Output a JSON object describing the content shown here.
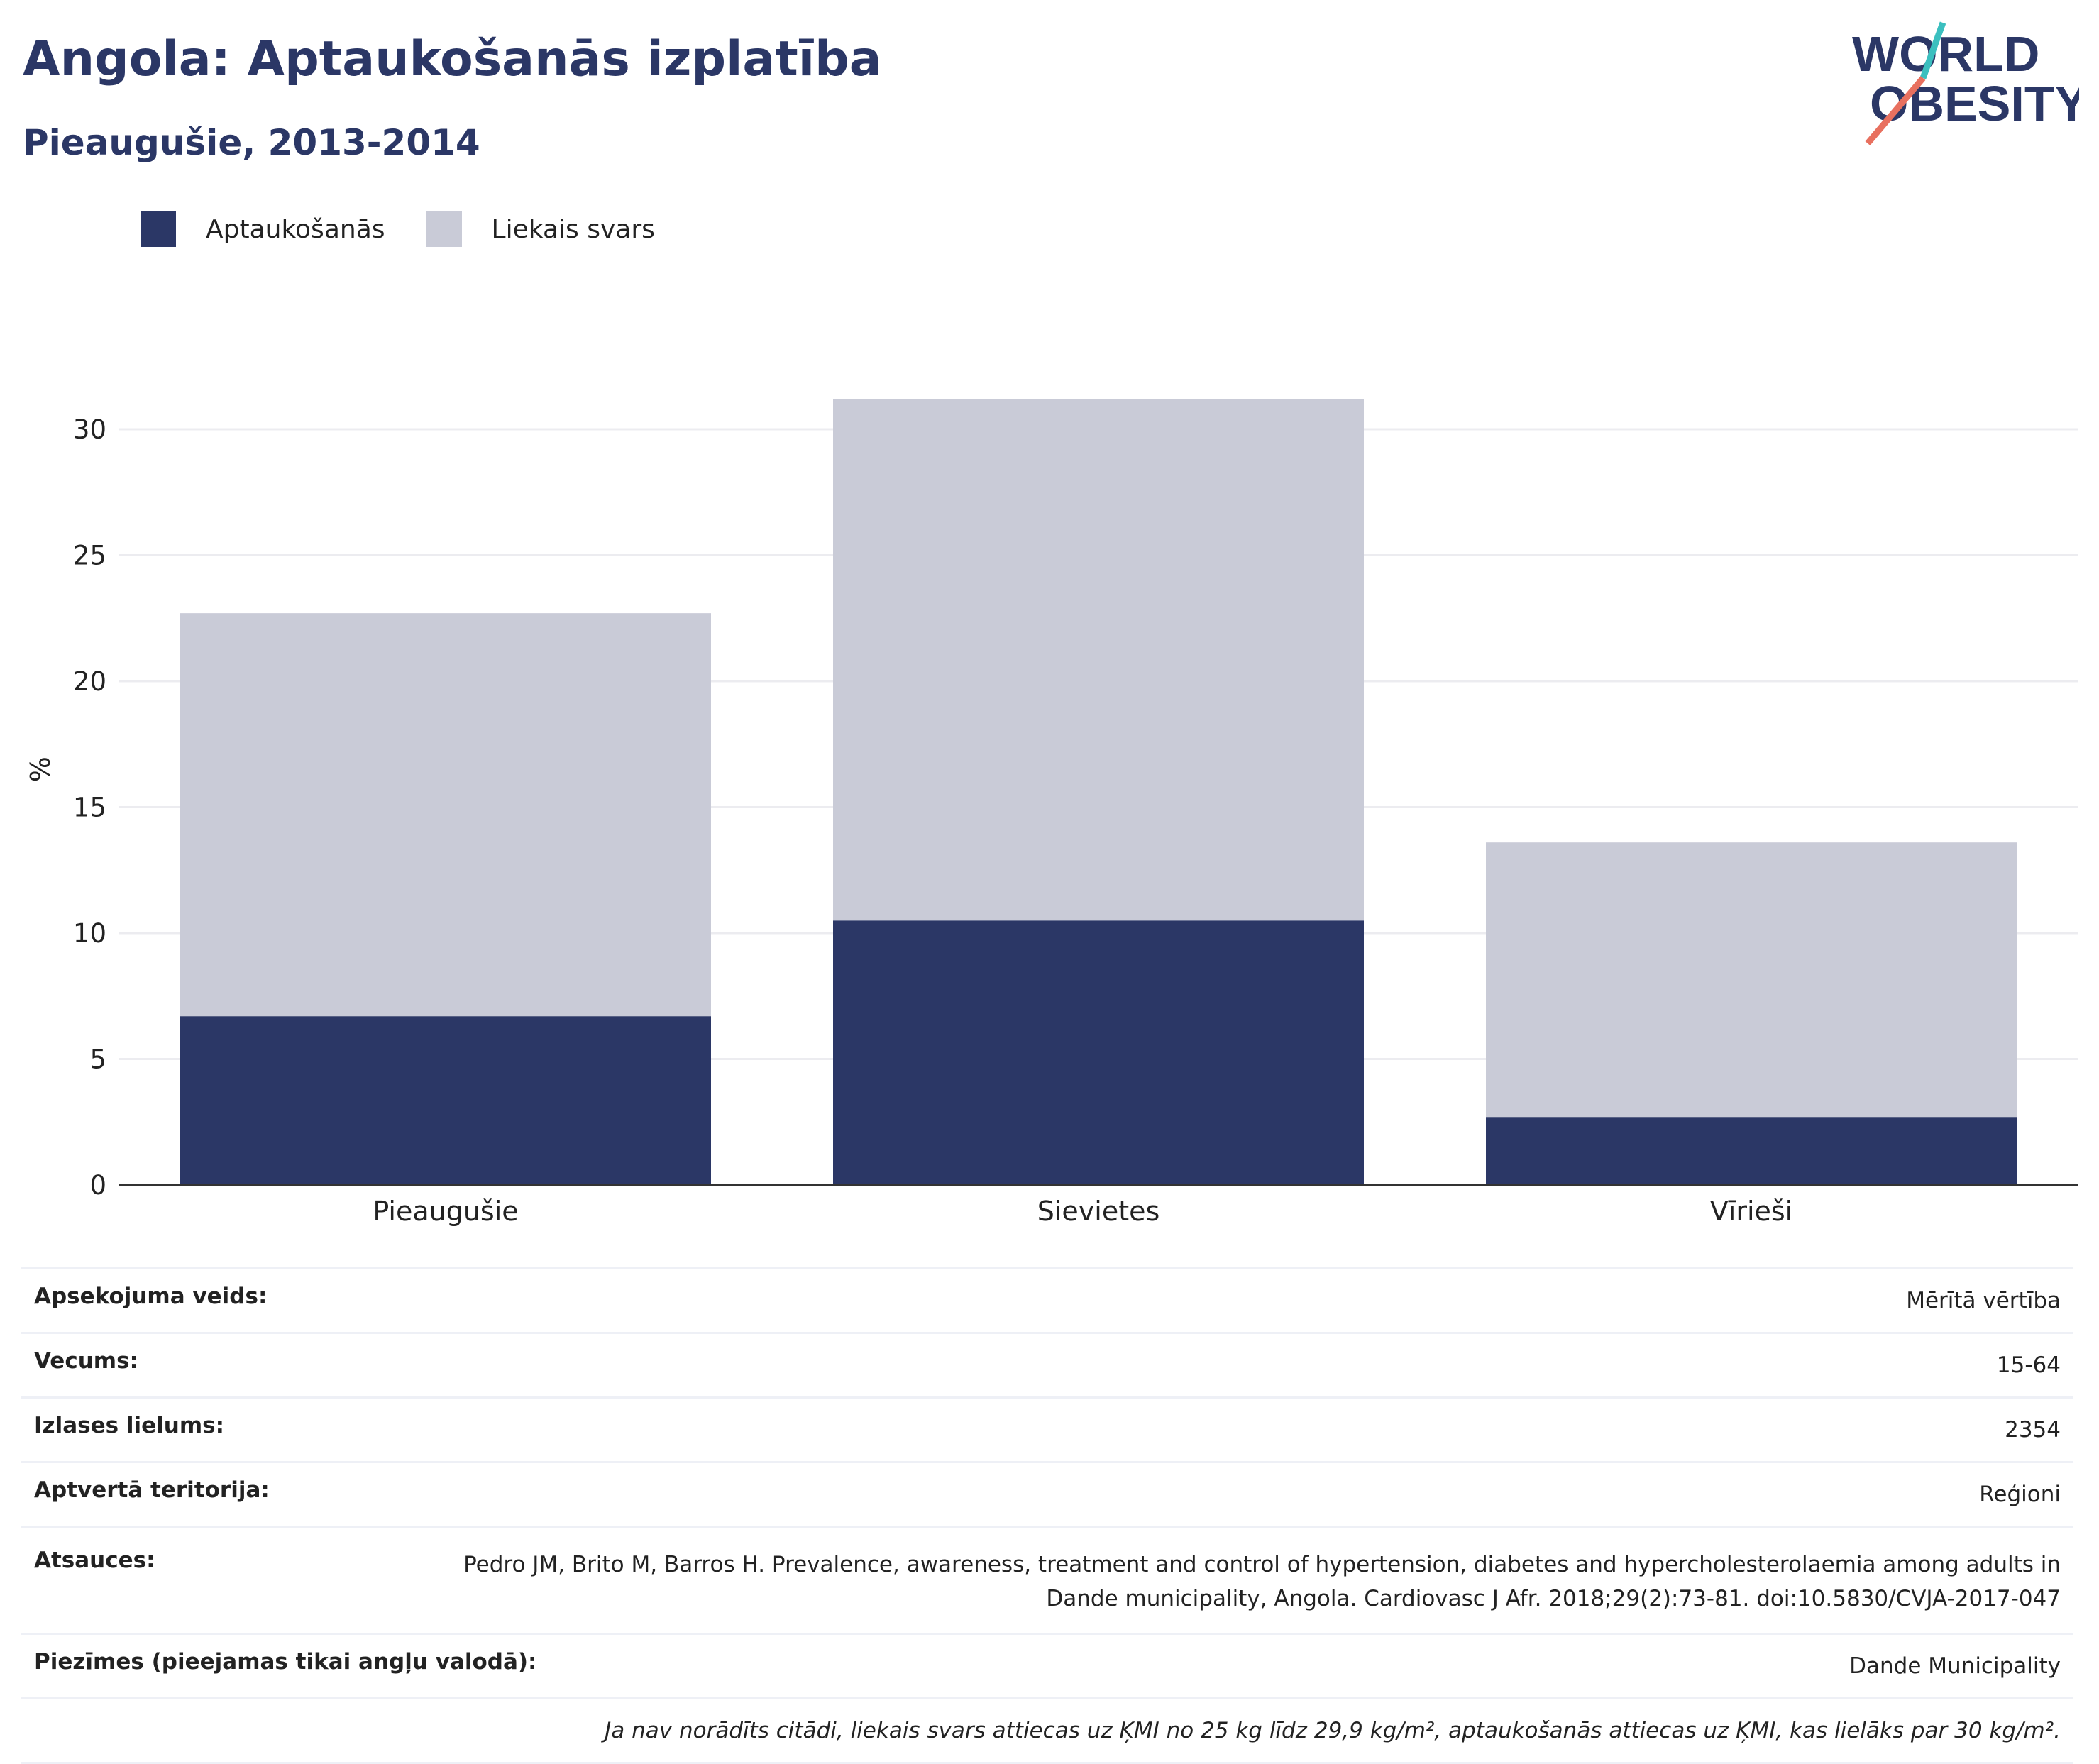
{
  "header": {
    "title": "Angola: Aptaukošanās izplatība",
    "subtitle": "Pieaugušie, 2013-2014"
  },
  "logo": {
    "line1": "WORLD",
    "line2": "OBESITY"
  },
  "legend": {
    "items": [
      {
        "label": "Aptaukošanās",
        "color": "#2b3766"
      },
      {
        "label": "Liekais svars",
        "color": "#c9cbd7"
      }
    ]
  },
  "chart_data": {
    "type": "bar",
    "stacked": true,
    "categories": [
      "Pieaugušie",
      "Sievietes",
      "Vīrieši"
    ],
    "series": [
      {
        "name": "Aptaukošanās",
        "values": [
          6.7,
          10.5,
          2.7
        ],
        "color": "#2b3766"
      },
      {
        "name": "Liekais svars",
        "values": [
          16.0,
          20.7,
          10.9
        ],
        "color": "#c9cbd7"
      }
    ],
    "ylabel": "%",
    "xlabel": "",
    "ylim": [
      0,
      33
    ],
    "yticks": [
      0,
      5,
      10,
      15,
      20,
      25,
      30
    ],
    "grid": true,
    "legend_position": "top-left"
  },
  "info": {
    "rows": [
      {
        "key": "Apsekojuma veids:",
        "value": "Mērītā vērtība"
      },
      {
        "key": "Vecums:",
        "value": "15-64"
      },
      {
        "key": "Izlases lielums:",
        "value": "2354"
      },
      {
        "key": "Aptvertā teritorija:",
        "value": "Reģioni"
      },
      {
        "key": "Atsauces:",
        "value": "Pedro JM, Brito M, Barros H. Prevalence, awareness, treatment and control of hypertension, diabetes and hypercholesterolaemia among adults in Dande municipality, Angola. Cardiovasc J Afr. 2018;29(2):73-81. doi:10.5830/CVJA-2017-047"
      },
      {
        "key": "Piezīmes (pieejamas tikai angļu valodā):",
        "value": "Dande Municipality"
      }
    ],
    "footnote": "Ja nav norādīts citādi, liekais svars attiecas uz ĶMI no 25 kg līdz 29,9 kg/m², aptaukošanās attiecas uz ĶMI, kas lielāks par 30 kg/m²."
  }
}
